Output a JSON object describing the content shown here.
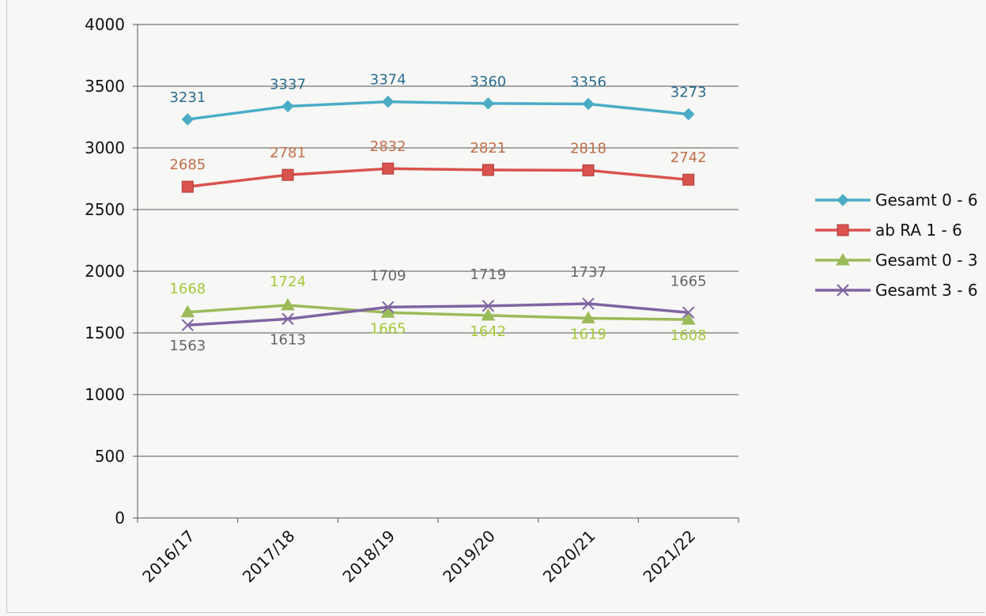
{
  "chart_data": {
    "type": "line",
    "title": "",
    "xlabel": "",
    "ylabel": "",
    "categories": [
      "2016/17",
      "2017/18",
      "2018/19",
      "2019/20",
      "2020/21",
      "2021/22"
    ],
    "ylim": [
      0,
      4000
    ],
    "yticks": [
      0,
      500,
      1000,
      1500,
      2000,
      2500,
      3000,
      3500,
      4000
    ],
    "grid": true,
    "legend_position": "right",
    "series": [
      {
        "name": "Gesamt 0 - 6",
        "marker": "diamond",
        "color": "#4bacc6",
        "label_color": "#2c6e8f",
        "values": [
          3231,
          3337,
          3374,
          3360,
          3356,
          3273
        ],
        "labels": [
          "3231",
          "3337",
          "3374",
          "3360",
          "3356",
          "3273"
        ],
        "label_position": "above"
      },
      {
        "name": "ab RA 1 - 6",
        "marker": "square",
        "color": "#d9534f",
        "label_color": "#c0704a",
        "values": [
          2685,
          2781,
          2832,
          2821,
          2818,
          2742
        ],
        "labels": [
          "2685",
          "2781",
          "2832",
          "2821",
          "2818",
          "2742"
        ],
        "label_position": "above"
      },
      {
        "name": "Gesamt 0 - 3",
        "marker": "triangle",
        "color": "#9bbb59",
        "label_color": "#a4c93a",
        "values": [
          1668,
          1724,
          1665,
          1642,
          1619,
          1608
        ],
        "labels": [
          "1668",
          "1724",
          "1665",
          "1642",
          "1619",
          "1608"
        ],
        "label_position": "mixed"
      },
      {
        "name": "Gesamt 3 - 6",
        "marker": "x",
        "color": "#8064a2",
        "label_color": "#666666",
        "values": [
          1563,
          1613,
          1709,
          1719,
          1737,
          1665
        ],
        "labels": [
          "1563",
          "1613",
          "1709",
          "1719",
          "1737",
          "1665"
        ],
        "label_position": "mixed"
      }
    ]
  }
}
